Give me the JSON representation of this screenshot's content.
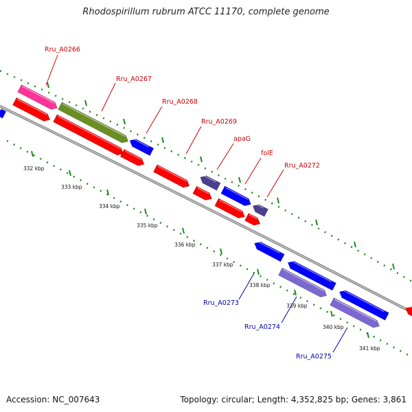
{
  "header": {
    "title": "Rhodospirillum rubrum ATCC 11170, complete genome"
  },
  "footer": {
    "accession": "Accession: NC_007643",
    "topology": "Topology: circular; Length: 4,352,825 bp; Genes: 3,861"
  },
  "scale_labels": [
    "332 kbp",
    "333 kbp",
    "334 kbp",
    "335 kbp",
    "336 kbp",
    "337 kbp",
    "338 kbp",
    "339 kbp",
    "340 kbp",
    "341 kbp"
  ],
  "gene_labels_top": [
    "Rru_A0266",
    "Rru_A0267",
    "Rru_A0268",
    "Rru_A0269",
    "apaG",
    "folE",
    "Rru_A0272"
  ],
  "gene_labels_bottom": [
    "Rru_A0273",
    "Rru_A0274",
    "Rru_A0275"
  ],
  "colors": {
    "forward_cds": "#ff0000",
    "reverse_cds": "#0000ff",
    "red_label": "#cc0000",
    "blue_label": "#0000aa",
    "pink": "#ff3399",
    "olive": "#6b8e23",
    "slate": "#4a3f8f",
    "lavender": "#7b68d0",
    "backbone": "#8c8c8c",
    "tick_marks": "#1a8a1a"
  }
}
